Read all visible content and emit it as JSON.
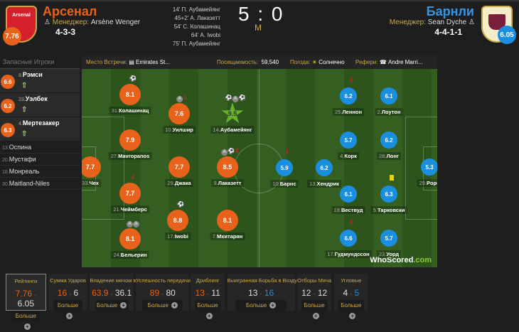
{
  "home": {
    "name": "Арсенал",
    "rating": "7.76",
    "manager_label": "Менеджер:",
    "manager": "Arsène Wenger",
    "formation": "4-3-3",
    "crest_text": "Arsenal",
    "color": "#e8621c"
  },
  "away": {
    "name": "Барнли",
    "rating": "6.05",
    "manager_label": "Менеджер:",
    "manager": "Sean Dyche",
    "formation": "4-4-1-1",
    "color": "#1a8fe0"
  },
  "goals": [
    "14' П. Аубамейянг",
    "45+2' А. Лаказетт",
    "54' С. Колашинац",
    "64' А. Iwobi",
    "75' П. Аубамейянг"
  ],
  "score": "5 : 0",
  "status": "M",
  "subs_header": "Запасные Игроки",
  "subs": [
    {
      "num": "8.",
      "name": "Рэмси",
      "rating": "6.6"
    },
    {
      "num": "23.",
      "name": "Уэлбек",
      "rating": "6.2"
    },
    {
      "num": "4.",
      "name": "Мертезакер",
      "rating": "6.3"
    }
  ],
  "bench": [
    {
      "num": "13.",
      "name": "Оспина"
    },
    {
      "num": "20.",
      "name": "Мустафи"
    },
    {
      "num": "18.",
      "name": "Монреаль"
    },
    {
      "num": "30.",
      "name": "Maitland-Niles"
    }
  ],
  "info": {
    "venue_label": "Место Встречи:",
    "venue": "Emirates St...",
    "attendance_label": "Посещаемость:",
    "attendance": "59,540",
    "weather_label": "Погода:",
    "weather": "Солнечно",
    "referee_label": "Рефери:",
    "referee": "Andre Marri..."
  },
  "players": [
    {
      "team": "home",
      "num": "31.",
      "name": "Колашинац",
      "rating": "8.1",
      "events": [
        "goal"
      ]
    },
    {
      "team": "home",
      "num": "10.",
      "name": "Уилшир",
      "rating": "7.6",
      "events": [
        "assist",
        "sub-off"
      ]
    },
    {
      "team": "home",
      "num": "14.",
      "name": "Аубамейянг",
      "rating": "9.5",
      "events": [
        "goal",
        "assist",
        "goal"
      ],
      "motm": true
    },
    {
      "team": "home",
      "num": "27.",
      "name": "Mavropanos",
      "rating": "7.9",
      "events": []
    },
    {
      "team": "home",
      "num": "33.",
      "name": "Чех",
      "rating": "7.7",
      "events": []
    },
    {
      "team": "home",
      "num": "29.",
      "name": "Джака",
      "rating": "7.7",
      "events": []
    },
    {
      "team": "home",
      "num": "9.",
      "name": "Лаказетт",
      "rating": "8.5",
      "events": [
        "assist",
        "goal",
        "sub-off"
      ]
    },
    {
      "team": "home",
      "num": "21.",
      "name": "Чеймберс",
      "rating": "7.7",
      "events": [
        "sub-off"
      ]
    },
    {
      "team": "home",
      "num": "17.",
      "name": "Iwobi",
      "rating": "8.8",
      "events": [
        "goal"
      ]
    },
    {
      "team": "home",
      "num": "7.",
      "name": "Мхитарян",
      "rating": "8.1",
      "events": []
    },
    {
      "team": "home",
      "num": "24.",
      "name": "Бельерин",
      "rating": "8.1",
      "events": [
        "assist",
        "assist"
      ]
    },
    {
      "team": "away",
      "num": "25.",
      "name": "Леннон",
      "rating": "6.2",
      "events": [
        "sub-off"
      ]
    },
    {
      "team": "away",
      "num": "2.",
      "name": "Лоутон",
      "rating": "6.1",
      "events": []
    },
    {
      "team": "away",
      "num": "4.",
      "name": "Корк",
      "rating": "5.7",
      "events": []
    },
    {
      "team": "away",
      "num": "28.",
      "name": "Лонг",
      "rating": "6.2",
      "events": []
    },
    {
      "team": "away",
      "num": "10.",
      "name": "Барнс",
      "rating": "5.9",
      "events": [
        "sub-off"
      ]
    },
    {
      "team": "away",
      "num": "13.",
      "name": "Хендрик",
      "rating": "6.2",
      "events": []
    },
    {
      "team": "away",
      "num": "29.",
      "name": "Pope",
      "rating": "5.3",
      "events": []
    },
    {
      "team": "away",
      "num": "18.",
      "name": "Вествуд",
      "rating": "6.1",
      "events": []
    },
    {
      "team": "away",
      "num": "5.",
      "name": "Тарковски",
      "rating": "6.3",
      "events": [
        "yellow-card"
      ]
    },
    {
      "team": "away",
      "num": "17.",
      "name": "Гудмундссон",
      "rating": "6.6",
      "events": [
        "sub-off"
      ]
    },
    {
      "team": "away",
      "num": "23.",
      "name": "Уорд",
      "rating": "5.7",
      "events": []
    }
  ],
  "watermark": {
    "a": "WhoScored",
    "b": ".com"
  },
  "stats": [
    {
      "title": "Рейтинги",
      "home": "7.76",
      "away": "6.05",
      "lead": "home",
      "selected": true
    },
    {
      "title": "Сумма Ударов",
      "home": "16",
      "away": "6",
      "lead": "home"
    },
    {
      "title": "Владение мячом в %",
      "home": "63.9",
      "away": "36.1",
      "lead": "home"
    },
    {
      "title": "Успешность передачи в %",
      "home": "89",
      "away": "80",
      "lead": "home"
    },
    {
      "title": "Дриблинг",
      "home": "13",
      "away": "11",
      "lead": "home"
    },
    {
      "title": "Выигранная Борьба в Воздухе",
      "home": "13",
      "away": "16",
      "lead": "away"
    },
    {
      "title": "Отборы Мяча",
      "home": "12",
      "away": "12",
      "lead": "none"
    },
    {
      "title": "Угловые",
      "home": "4",
      "away": "5",
      "lead": "away"
    }
  ],
  "more_label": "Больше",
  "separator": "-"
}
